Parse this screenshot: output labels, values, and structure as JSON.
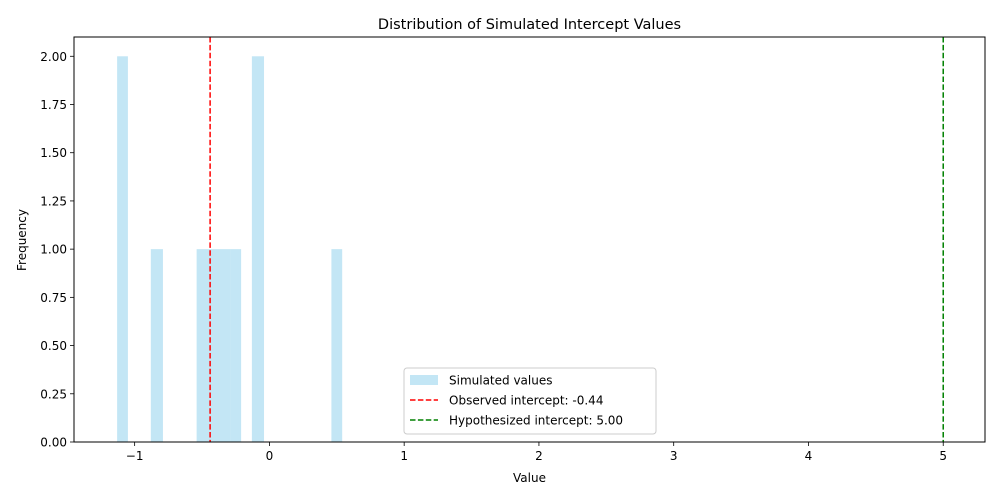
{
  "chart_data": {
    "type": "bar",
    "title": "Distribution of Simulated Intercept Values",
    "xlabel": "Value",
    "ylabel": "Frequency",
    "xlim": [
      -1.45,
      5.31
    ],
    "ylim": [
      0,
      2.1
    ],
    "x_ticks": [
      -1,
      0,
      1,
      2,
      3,
      4,
      5
    ],
    "x_tick_labels": [
      "−1",
      "0",
      "1",
      "2",
      "3",
      "4",
      "5"
    ],
    "y_ticks": [
      0,
      0.25,
      0.5,
      0.75,
      1.0,
      1.25,
      1.5,
      1.75,
      2.0
    ],
    "y_tick_labels": [
      "0.00",
      "0.25",
      "0.50",
      "0.75",
      "1.00",
      "1.25",
      "1.50",
      "1.75",
      "2.00"
    ],
    "grid": false,
    "legend_position": "lower-center",
    "series": [
      {
        "name": "Simulated values",
        "kind": "histogram",
        "color": "#87ceeb",
        "bins": [
          {
            "x0": -1.13,
            "x1": -1.05,
            "count": 2
          },
          {
            "x0": -0.88,
            "x1": -0.79,
            "count": 1
          },
          {
            "x0": -0.54,
            "x1": -0.46,
            "count": 1
          },
          {
            "x0": -0.46,
            "x1": -0.37,
            "count": 1
          },
          {
            "x0": -0.37,
            "x1": -0.29,
            "count": 1
          },
          {
            "x0": -0.29,
            "x1": -0.21,
            "count": 1
          },
          {
            "x0": -0.13,
            "x1": -0.04,
            "count": 2
          },
          {
            "x0": 0.46,
            "x1": 0.54,
            "count": 1
          }
        ]
      }
    ],
    "reference_lines": [
      {
        "name": "Observed intercept: -0.44",
        "x": -0.44,
        "color": "#ff0000",
        "style": "dashed"
      },
      {
        "name": "Hypothesized intercept: 5.00",
        "x": 5.0,
        "color": "#008000",
        "style": "dashed"
      }
    ]
  }
}
